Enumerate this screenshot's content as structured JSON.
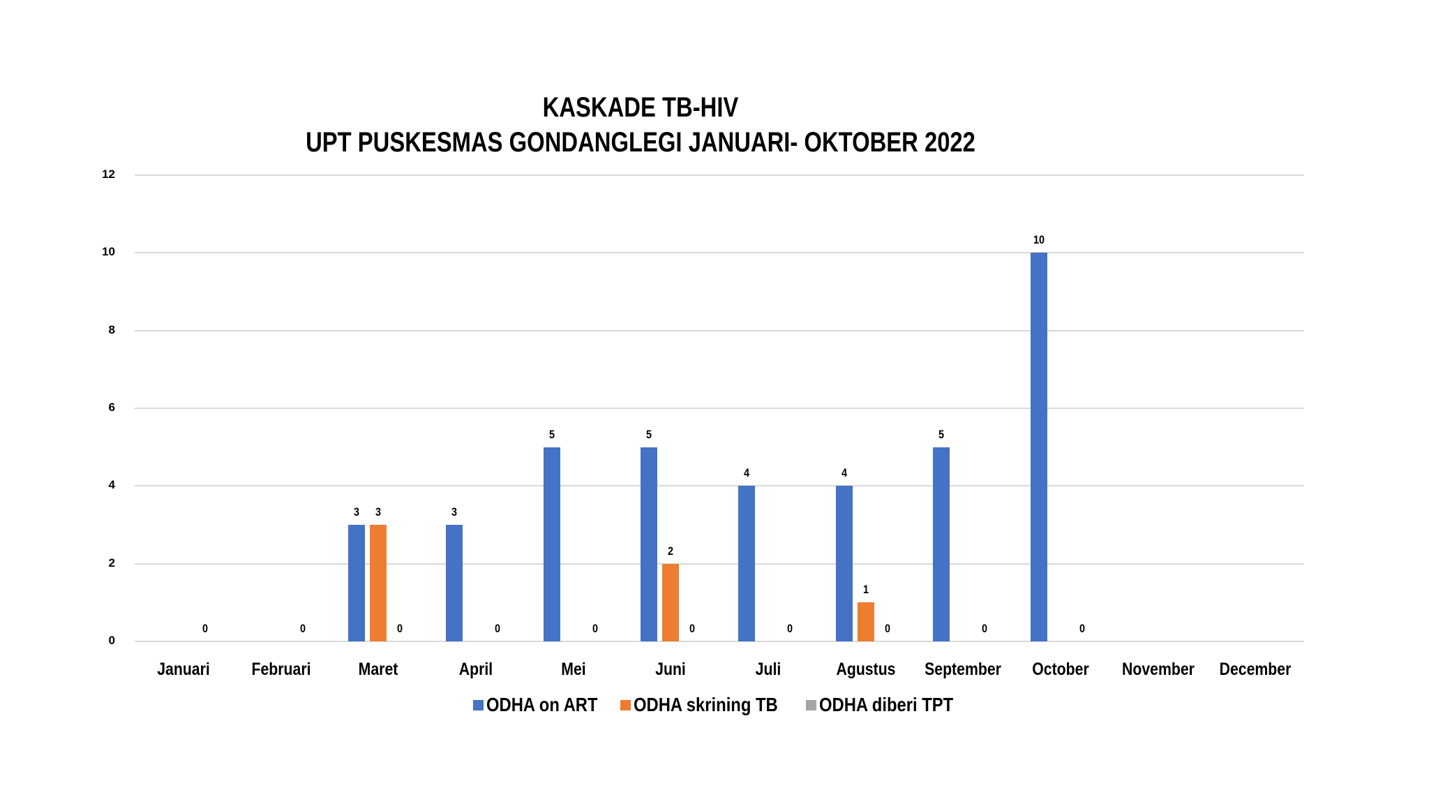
{
  "chart_data": {
    "type": "bar",
    "title": "KASKADE TB-HIV",
    "subtitle": "UPT PUSKESMAS GONDANGLEGI JANUARI- OKTOBER 2022",
    "xlabel": "",
    "ylabel": "",
    "ylim": [
      0,
      12
    ],
    "yticks": [
      0,
      2,
      4,
      6,
      8,
      10,
      12
    ],
    "grid": true,
    "legend_position": "bottom",
    "categories": [
      "Januari",
      "Februari",
      "Maret",
      "April",
      "Mei",
      "Juni",
      "Juli",
      "Agustus",
      "September",
      "October",
      "November",
      "December"
    ],
    "series": [
      {
        "name": "ODHA on ART",
        "color": "#4472c4",
        "values": [
          null,
          null,
          3,
          3,
          5,
          5,
          4,
          4,
          5,
          10,
          null,
          null
        ]
      },
      {
        "name": "ODHA skrining TB",
        "color": "#ed7d31",
        "values": [
          null,
          null,
          3,
          null,
          null,
          2,
          null,
          1,
          null,
          null,
          null,
          null
        ]
      },
      {
        "name": "ODHA diberi TPT",
        "color": "#a5a5a5",
        "values": [
          0,
          0,
          0,
          0,
          0,
          0,
          0,
          0,
          0,
          0,
          null,
          null
        ]
      }
    ]
  },
  "header": {
    "title": "KASKADE TB-HIV",
    "subtitle": "UPT PUSKESMAS GONDANGLEGI JANUARI- OKTOBER 2022"
  },
  "legend": [
    {
      "label": "ODHA on ART",
      "color": "#4472c4"
    },
    {
      "label": "ODHA skrining TB",
      "color": "#ed7d31"
    },
    {
      "label": "ODHA diberi TPT",
      "color": "#a5a5a5"
    }
  ]
}
